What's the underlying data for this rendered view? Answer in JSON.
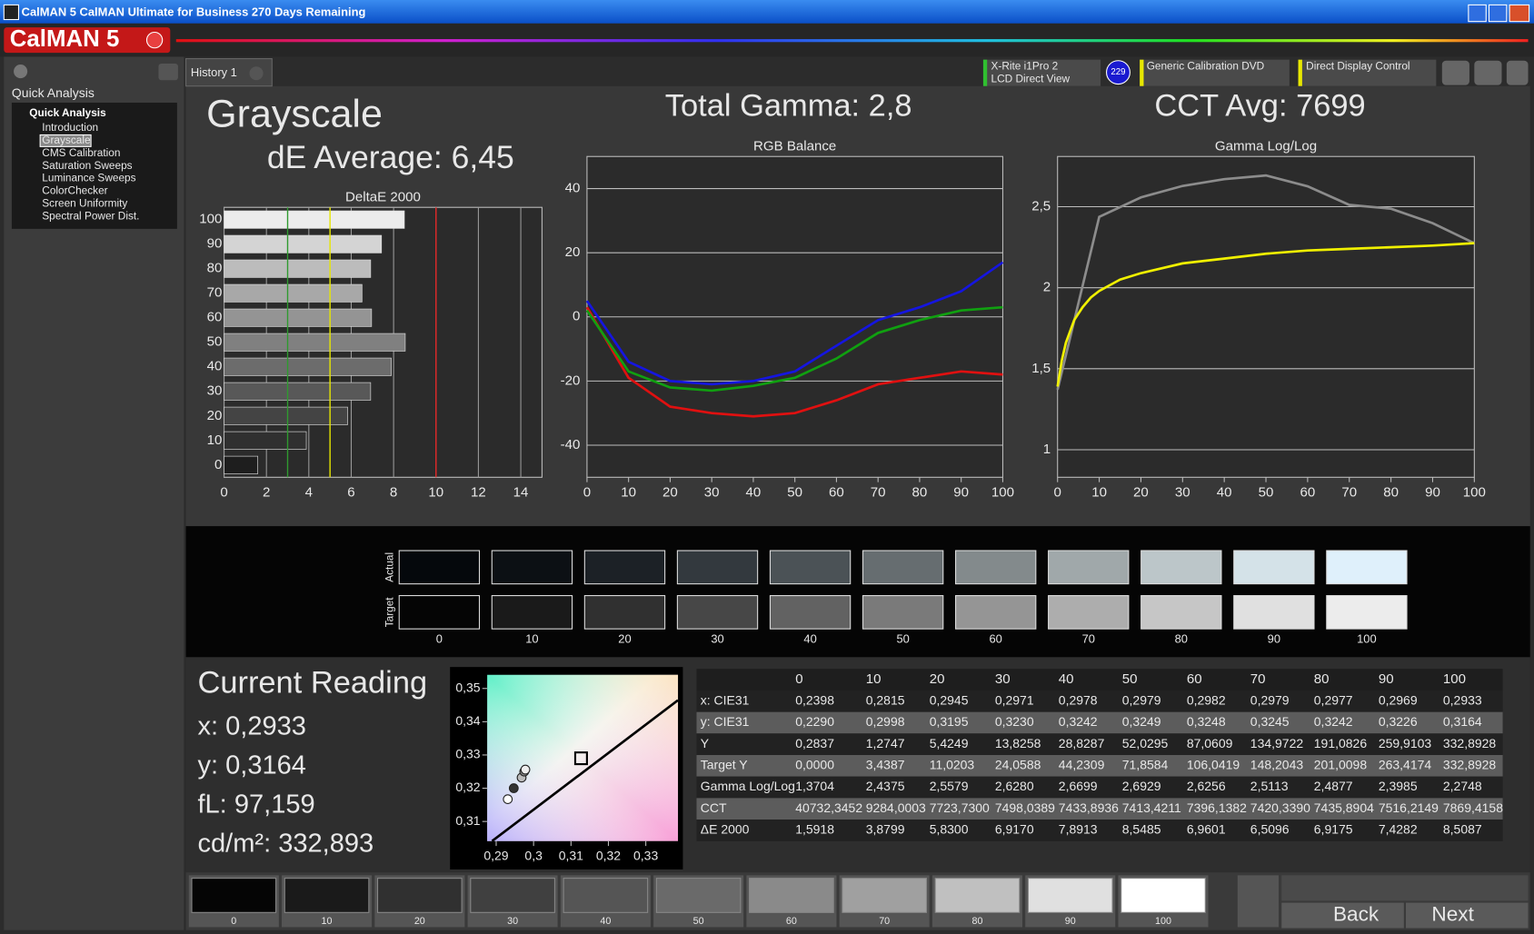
{
  "title_bar": {
    "title": "CalMAN 5 CalMAN Ultimate for Business 270 Days Remaining"
  },
  "logo": "CalMAN 5",
  "sidebar": {
    "header": "Quick Analysis",
    "tree_root": "Quick Analysis",
    "items": [
      "Introduction",
      "Grayscale",
      "CMS Calibration",
      "Saturation Sweeps",
      "Luminance Sweeps",
      "ColorChecker",
      "Screen Uniformity",
      "Spectral Power Dist."
    ],
    "selected": 1
  },
  "tabs": [
    "History 1"
  ],
  "toolbar": {
    "meter": [
      "X-Rite i1Pro 2",
      "LCD Direct View"
    ],
    "meter_badge": "229",
    "source": "Generic Calibration DVD",
    "display": "Direct Display Control"
  },
  "headings": {
    "page": "Grayscale",
    "de_average": "dE Average: 6,45",
    "gamma": "Total Gamma: 2,8",
    "cct": "CCT Avg: 7699"
  },
  "chart_data": [
    {
      "type": "bar",
      "orientation": "horizontal",
      "title": "DeltaE 2000",
      "categories": [
        "0",
        "10",
        "20",
        "30",
        "40",
        "50",
        "60",
        "70",
        "80",
        "90",
        "100"
      ],
      "values": [
        1.5918,
        3.8799,
        5.83,
        6.917,
        7.8913,
        8.5485,
        6.9601,
        6.5096,
        6.9175,
        7.4282,
        8.5087
      ],
      "bar_colors": [
        "#1e1e1e",
        "#303030",
        "#444444",
        "#585858",
        "#6c6c6c",
        "#808080",
        "#949494",
        "#a8a8a8",
        "#bcbcbc",
        "#d4d4d4",
        "#ececec"
      ],
      "xlim": [
        0,
        15
      ],
      "xticks": [
        0,
        2,
        4,
        6,
        8,
        10,
        12,
        14
      ],
      "grid": true,
      "thresholds": [
        {
          "value": 3,
          "color": "#2f9a2f"
        },
        {
          "value": 5,
          "color": "#e6e600"
        },
        {
          "value": 10,
          "color": "#e02525"
        }
      ]
    },
    {
      "type": "line",
      "title": "RGB Balance",
      "x": [
        0,
        10,
        20,
        30,
        40,
        50,
        60,
        70,
        80,
        90,
        100
      ],
      "series": [
        {
          "color": "#e01010",
          "values": [
            3,
            -19,
            -28,
            -30,
            -31,
            -30,
            -26,
            -21,
            -19,
            -17,
            -18
          ]
        },
        {
          "color": "#10a010",
          "values": [
            2,
            -17,
            -22,
            -23,
            -21.5,
            -19,
            -13,
            -5,
            -1,
            2,
            3
          ]
        },
        {
          "color": "#1515e0",
          "values": [
            5,
            -14,
            -20,
            -21,
            -20,
            -17,
            -9,
            -1,
            3,
            8,
            17
          ]
        }
      ],
      "xlim": [
        0,
        100
      ],
      "xticks": [
        0,
        10,
        20,
        30,
        40,
        50,
        60,
        70,
        80,
        90,
        100
      ],
      "ylim": [
        -50,
        50
      ],
      "yticks": [
        -40,
        -20,
        0,
        20,
        40
      ],
      "grid": true
    },
    {
      "type": "line",
      "title": "Gamma Log/Log",
      "series": [
        {
          "color": "#8c8c8c",
          "x": [
            0,
            10,
            20,
            30,
            40,
            50,
            60,
            70,
            80,
            90,
            100
          ],
          "values": [
            1.3704,
            2.4375,
            2.5579,
            2.628,
            2.6699,
            2.6929,
            2.6256,
            2.5113,
            2.4877,
            2.3985,
            2.2748
          ]
        },
        {
          "color": "#f0f000",
          "x": [
            0,
            1,
            2,
            4,
            6,
            8,
            10,
            15,
            20,
            30,
            40,
            50,
            60,
            70,
            80,
            90,
            100
          ],
          "values": [
            1.39,
            1.55,
            1.66,
            1.8,
            1.88,
            1.94,
            1.98,
            2.05,
            2.09,
            2.15,
            2.18,
            2.21,
            2.23,
            2.24,
            2.25,
            2.26,
            2.275
          ]
        }
      ],
      "xlim": [
        0,
        100
      ],
      "xticks": [
        0,
        10,
        20,
        30,
        40,
        50,
        60,
        70,
        80,
        90,
        100
      ],
      "ylim": [
        0.83,
        2.81
      ],
      "yticks": [
        1,
        {
          "value": 1.5,
          "label": "1,5"
        },
        2,
        {
          "value": 2.5,
          "label": "2,5"
        }
      ],
      "grid": true
    },
    {
      "type": "scatter",
      "series": [
        {
          "x": [
            0.2931,
            0.2947,
            0.2968,
            0.2975,
            0.2978
          ],
          "values": [
            0.3167,
            0.32,
            0.3232,
            0.325,
            0.3256
          ],
          "colors": [
            "#ffffff",
            "#333333",
            "#bbbbbb",
            "#888888",
            "#eeeeee"
          ]
        }
      ],
      "target": {
        "x": 0.3127,
        "y": 0.329
      },
      "xlim": [
        0.2876,
        0.3386
      ],
      "ylim": [
        0.3041,
        0.3541
      ],
      "xticks": [
        {
          "value": 0.29,
          "label": "0,29"
        },
        {
          "value": 0.3,
          "label": "0,3"
        },
        {
          "value": 0.31,
          "label": "0,31"
        },
        {
          "value": 0.32,
          "label": "0,32"
        },
        {
          "value": 0.33,
          "label": "0,33"
        }
      ],
      "yticks": [
        {
          "value": 0.31,
          "label": "0,31"
        },
        {
          "value": 0.32,
          "label": "0,32"
        },
        {
          "value": 0.33,
          "label": "0,33"
        },
        {
          "value": 0.34,
          "label": "0,34"
        },
        {
          "value": 0.35,
          "label": "0,35"
        }
      ]
    }
  ],
  "swatches": {
    "row_labels": [
      "Actual",
      "Target"
    ],
    "labels": [
      "0",
      "10",
      "20",
      "30",
      "40",
      "50",
      "60",
      "70",
      "80",
      "90",
      "100"
    ],
    "actual": [
      "#05080c",
      "#0c1014",
      "#1c2126",
      "#33393e",
      "#4b5256",
      "#666d70",
      "#838a8c",
      "#a0a8aa",
      "#bcc6c9",
      "#d4e2e8",
      "#dff0fb"
    ],
    "target": [
      "#050505",
      "#1a1a1a",
      "#303030",
      "#474747",
      "#626262",
      "#7a7a7a",
      "#959595",
      "#adadad",
      "#c6c6c6",
      "#e0e0e0",
      "#ececec"
    ]
  },
  "reading": {
    "title": "Current Reading",
    "lines": [
      "x: 0,2933",
      "y: 0,3164",
      "fL: 97,159",
      "cd/m²: 332,893"
    ]
  },
  "table": {
    "columns": [
      "0",
      "10",
      "20",
      "30",
      "40",
      "50",
      "60",
      "70",
      "80",
      "90",
      "100"
    ],
    "rows": [
      {
        "label": "x: CIE31",
        "cells": [
          "0,2398",
          "0,2815",
          "0,2945",
          "0,2971",
          "0,2978",
          "0,2979",
          "0,2982",
          "0,2979",
          "0,2977",
          "0,2969",
          "0,2933"
        ]
      },
      {
        "label": "y: CIE31",
        "cells": [
          "0,2290",
          "0,2998",
          "0,3195",
          "0,3230",
          "0,3242",
          "0,3249",
          "0,3248",
          "0,3245",
          "0,3242",
          "0,3226",
          "0,3164"
        ]
      },
      {
        "label": "Y",
        "cells": [
          "0,2837",
          "1,2747",
          "5,4249",
          "13,8258",
          "28,8287",
          "52,0295",
          "87,0609",
          "134,9722",
          "191,0826",
          "259,9103",
          "332,8928"
        ]
      },
      {
        "label": "Target Y",
        "cells": [
          "0,0000",
          "3,4387",
          "11,0203",
          "24,0588",
          "44,2309",
          "71,8584",
          "106,0419",
          "148,2043",
          "201,0098",
          "263,4174",
          "332,8928"
        ]
      },
      {
        "label": "Gamma Log/Log",
        "cells": [
          "1,3704",
          "2,4375",
          "2,5579",
          "2,6280",
          "2,6699",
          "2,6929",
          "2,6256",
          "2,5113",
          "2,4877",
          "2,3985",
          "2,2748"
        ]
      },
      {
        "label": "CCT",
        "cells": [
          "40732,3452",
          "9284,0003",
          "7723,7300",
          "7498,0389",
          "7433,8936",
          "7413,4211",
          "7396,1382",
          "7420,3390",
          "7435,8904",
          "7516,2149",
          "7869,4158"
        ]
      },
      {
        "label": "ΔE 2000",
        "cells": [
          "1,5918",
          "3,8799",
          "5,8300",
          "6,9170",
          "7,8913",
          "8,5485",
          "6,9601",
          "6,5096",
          "6,9175",
          "7,4282",
          "8,5087"
        ]
      }
    ]
  },
  "bottom": {
    "swatch_colors": [
      "#050505",
      "#1a1a1a",
      "#303030",
      "#404040",
      "#555555",
      "#6a6a6a",
      "#8a8a8a",
      "#a0a0a0",
      "#c0c0c0",
      "#e0e0e0",
      "#ffffff"
    ],
    "back": "Back",
    "next": "Next"
  }
}
